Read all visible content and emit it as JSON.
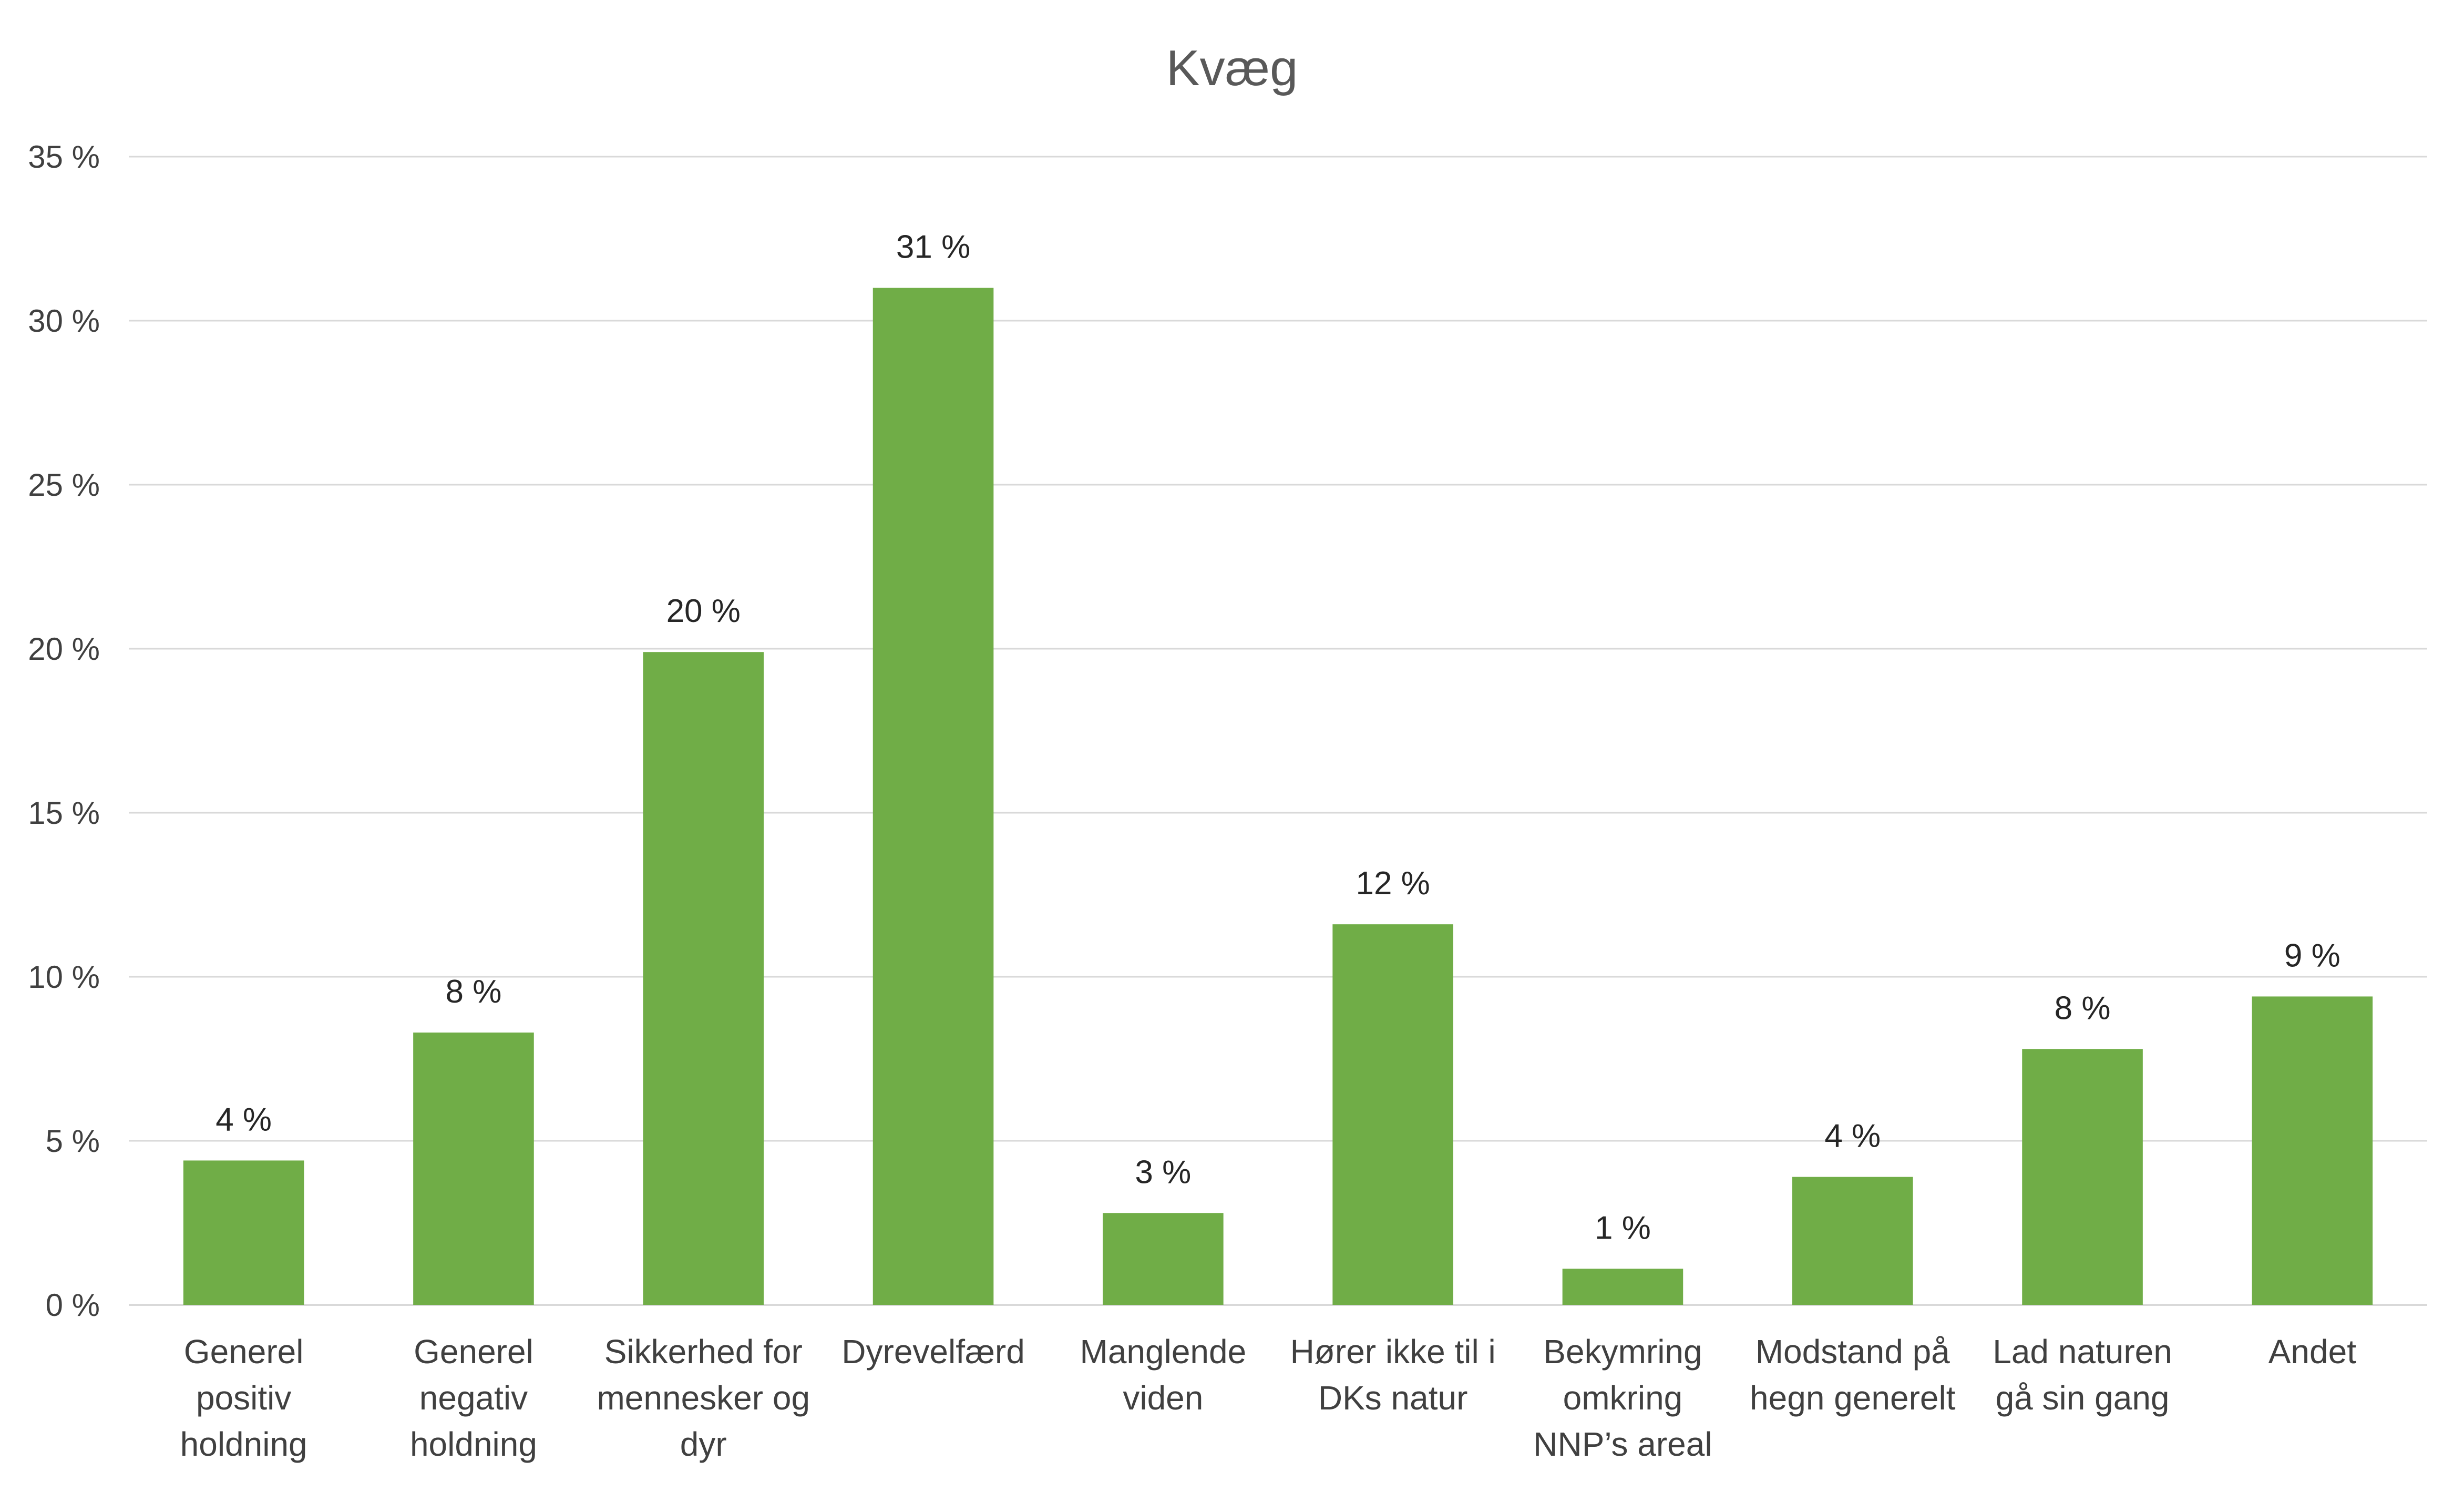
{
  "chart_data": {
    "type": "bar",
    "title": "Kvæg",
    "xlabel": "",
    "ylabel": "",
    "ylim": [
      0,
      35
    ],
    "yticks": [
      0,
      5,
      10,
      15,
      20,
      25,
      30,
      35
    ],
    "ytick_labels": [
      "0 %",
      "5 %",
      "10 %",
      "15 %",
      "20 %",
      "25 %",
      "30 %",
      "35 %"
    ],
    "grid": true,
    "legend": "none",
    "bar_color": "#70ad47",
    "categories": [
      [
        "Generel",
        "positiv",
        "holdning"
      ],
      [
        "Generel",
        "negativ",
        "holdning"
      ],
      [
        "Sikkerhed for",
        "mennesker og",
        "dyr"
      ],
      [
        "Dyrevelfærd"
      ],
      [
        "Manglende",
        "viden"
      ],
      [
        "Hører ikke til i",
        "DKs natur"
      ],
      [
        "Bekymring",
        "omkring",
        "NNP’s areal"
      ],
      [
        "Modstand på",
        "hegn generelt"
      ],
      [
        "Lad naturen",
        "gå sin gang"
      ],
      [
        "Andet"
      ]
    ],
    "values": [
      4.4,
      8.3,
      19.9,
      31.0,
      2.8,
      11.6,
      1.1,
      3.9,
      7.8,
      9.4
    ],
    "data_labels": [
      "4 %",
      "8 %",
      "20 %",
      "31 %",
      "3 %",
      "12 %",
      "1 %",
      "4 %",
      "8 %",
      "9 %"
    ]
  }
}
